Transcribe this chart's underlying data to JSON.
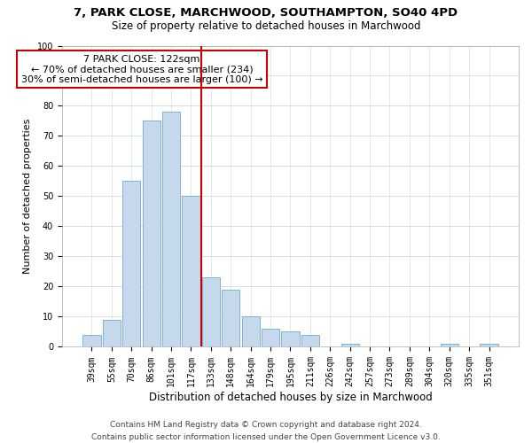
{
  "title1": "7, PARK CLOSE, MARCHWOOD, SOUTHAMPTON, SO40 4PD",
  "title2": "Size of property relative to detached houses in Marchwood",
  "xlabel": "Distribution of detached houses by size in Marchwood",
  "ylabel": "Number of detached properties",
  "categories": [
    "39sqm",
    "55sqm",
    "70sqm",
    "86sqm",
    "101sqm",
    "117sqm",
    "133sqm",
    "148sqm",
    "164sqm",
    "179sqm",
    "195sqm",
    "211sqm",
    "226sqm",
    "242sqm",
    "257sqm",
    "273sqm",
    "289sqm",
    "304sqm",
    "320sqm",
    "335sqm",
    "351sqm"
  ],
  "values": [
    4,
    9,
    55,
    75,
    78,
    50,
    23,
    19,
    10,
    6,
    5,
    4,
    0,
    1,
    0,
    0,
    0,
    0,
    1,
    0,
    1
  ],
  "bar_color": "#c6d9ec",
  "bar_edge_color": "#7fb3d3",
  "vline_x_index": 5,
  "vline_color": "#cc0000",
  "annotation_title": "7 PARK CLOSE: 122sqm",
  "annotation_line1": "← 70% of detached houses are smaller (234)",
  "annotation_line2": "30% of semi-detached houses are larger (100) →",
  "annotation_box_color": "white",
  "annotation_box_edge": "#cc0000",
  "ylim": [
    0,
    100
  ],
  "yticks": [
    0,
    10,
    20,
    30,
    40,
    50,
    60,
    70,
    80,
    90,
    100
  ],
  "footer1": "Contains HM Land Registry data © Crown copyright and database right 2024.",
  "footer2": "Contains public sector information licensed under the Open Government Licence v3.0.",
  "title1_fontsize": 9.5,
  "title2_fontsize": 8.5,
  "xlabel_fontsize": 8.5,
  "ylabel_fontsize": 8,
  "tick_fontsize": 7,
  "footer_fontsize": 6.5,
  "annotation_fontsize": 8
}
